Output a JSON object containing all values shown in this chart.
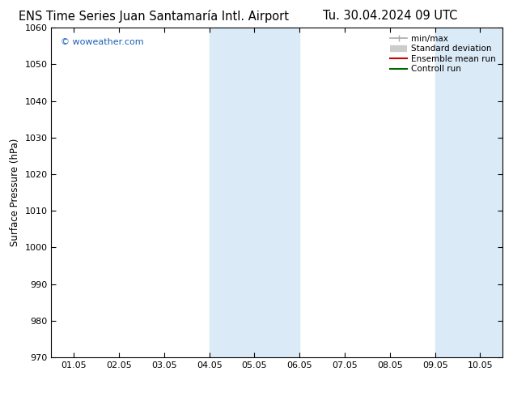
{
  "title_left": "ENS Time Series Juan Santamaría Intl. Airport",
  "title_right": "Tu. 30.04.2024 09 UTC",
  "ylabel": "Surface Pressure (hPa)",
  "ylim": [
    970,
    1060
  ],
  "yticks": [
    970,
    980,
    990,
    1000,
    1010,
    1020,
    1030,
    1040,
    1050,
    1060
  ],
  "xlim_start": -0.5,
  "xlim_end": 9.5,
  "xtick_labels": [
    "01.05",
    "02.05",
    "03.05",
    "04.05",
    "05.05",
    "06.05",
    "07.05",
    "08.05",
    "09.05",
    "10.05"
  ],
  "xtick_positions": [
    0,
    1,
    2,
    3,
    4,
    5,
    6,
    7,
    8,
    9
  ],
  "shaded_bands": [
    {
      "x_start": 3.0,
      "x_end": 5.0
    },
    {
      "x_start": 8.0,
      "x_end": 9.5
    }
  ],
  "shade_color": "#daeaf7",
  "background_color": "#ffffff",
  "watermark_text": "© woweather.com",
  "watermark_color": "#1a5fb4",
  "legend_items": [
    {
      "label": "min/max",
      "color": "#aaaaaa",
      "type": "line_with_caps"
    },
    {
      "label": "Standard deviation",
      "color": "#cccccc",
      "type": "thick_line"
    },
    {
      "label": "Ensemble mean run",
      "color": "#cc0000",
      "type": "line"
    },
    {
      "label": "Controll run",
      "color": "#006600",
      "type": "line"
    }
  ],
  "title_fontsize": 10.5,
  "axis_fontsize": 8.5,
  "tick_fontsize": 8
}
